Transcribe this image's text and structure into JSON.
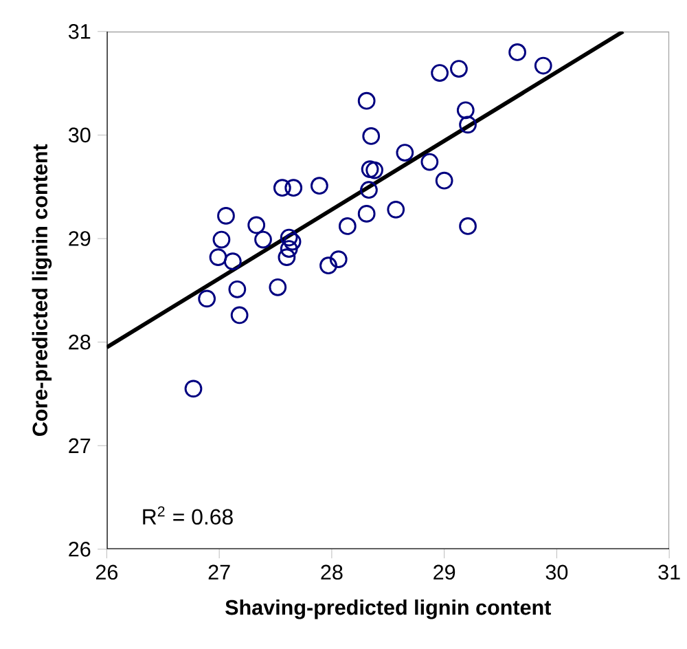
{
  "chart_data": {
    "type": "scatter",
    "xlabel": "Shaving-predicted lignin content",
    "ylabel": "Core-predicted lignin content",
    "xlim": [
      26,
      31
    ],
    "ylim": [
      26,
      31
    ],
    "xticks": [
      26,
      27,
      28,
      29,
      30,
      31
    ],
    "yticks": [
      26,
      27,
      28,
      29,
      30,
      31
    ],
    "annotations": [
      "R$^{2}$ = 0.68"
    ],
    "series": [
      {
        "marker": "circle",
        "color": "#000080",
        "x": [
          26.77,
          26.89,
          26.99,
          27.02,
          27.06,
          27.12,
          27.16,
          27.18,
          27.33,
          27.39,
          27.52,
          27.56,
          27.66,
          27.62,
          27.65,
          27.62,
          27.6,
          27.89,
          27.97,
          28.06,
          28.14,
          28.31,
          28.35,
          28.34,
          28.38,
          28.33,
          28.31,
          28.65,
          28.57,
          28.87,
          29.0,
          28.96,
          29.13,
          29.19,
          29.21,
          29.21,
          29.65,
          29.88
        ],
        "values": [
          27.55,
          28.42,
          28.82,
          28.99,
          29.22,
          28.78,
          28.51,
          28.26,
          29.13,
          28.99,
          28.53,
          29.49,
          29.49,
          29.01,
          28.97,
          28.9,
          28.82,
          29.51,
          28.74,
          28.8,
          29.12,
          30.33,
          29.99,
          29.67,
          29.66,
          29.47,
          29.24,
          29.83,
          29.28,
          29.74,
          29.56,
          30.6,
          30.64,
          30.24,
          30.1,
          29.12,
          30.8,
          30.67
        ]
      },
      {
        "type": "line",
        "marker": "none",
        "color": "#000000",
        "x": [
          26,
          30.59
        ],
        "values": [
          27.95,
          31
        ]
      }
    ]
  }
}
